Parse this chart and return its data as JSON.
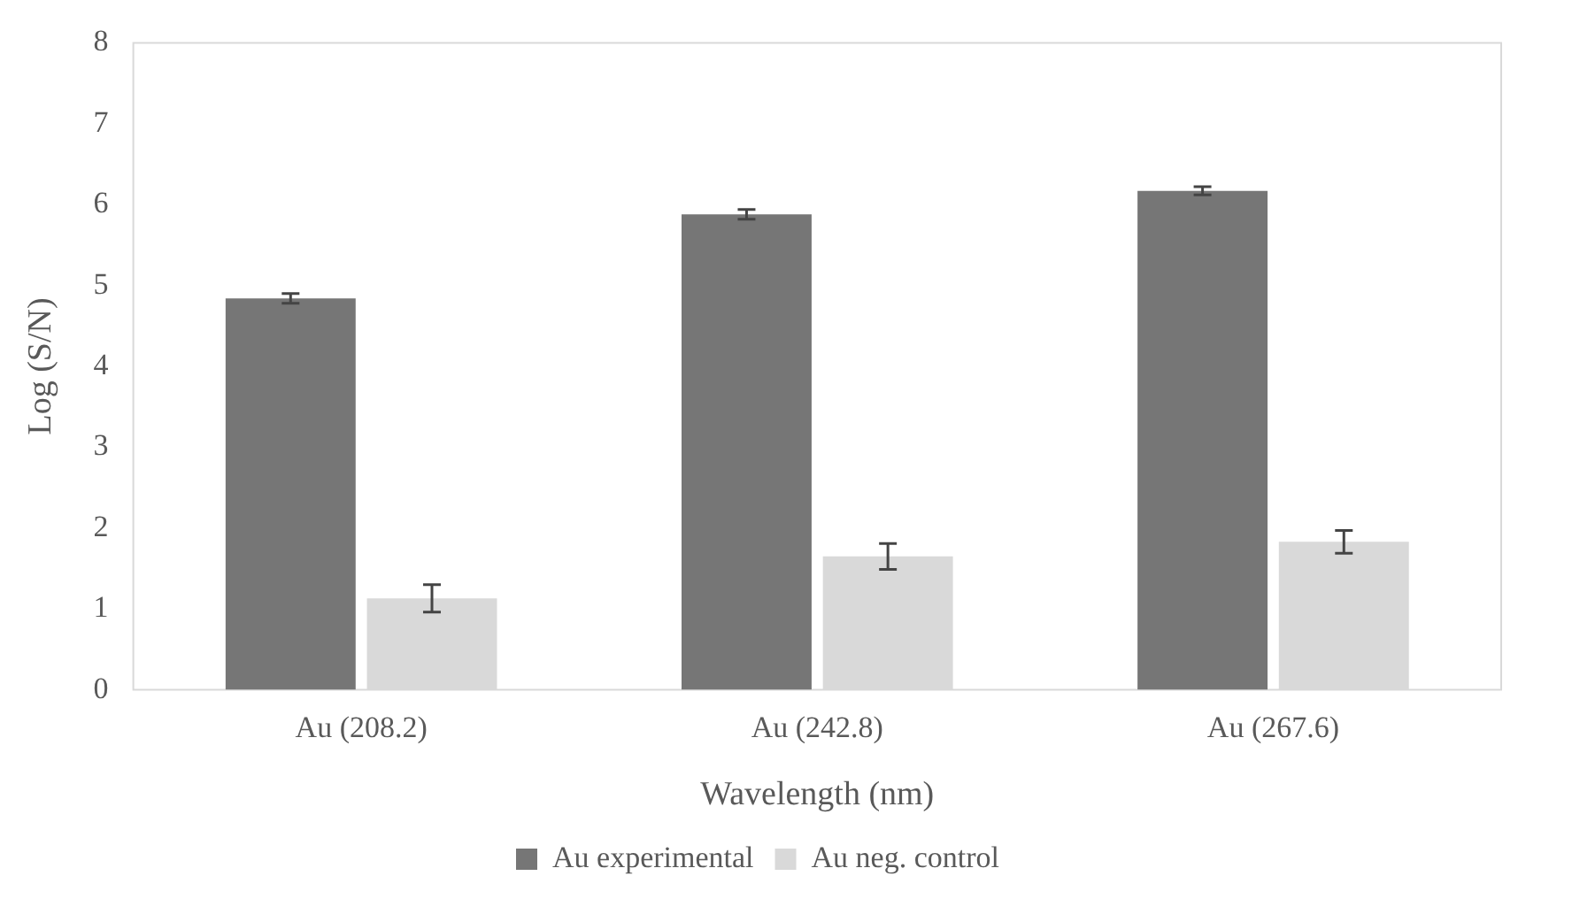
{
  "chart_data": {
    "type": "bar",
    "xlabel": "Wavelength (nm)",
    "ylabel": "Log (S/N)",
    "categories": [
      "Au (208.2)",
      "Au (242.8)",
      "Au (267.6)"
    ],
    "series": [
      {
        "name": "Au experimental",
        "color": "#767676",
        "values": [
          4.84,
          5.88,
          6.17
        ],
        "errors": [
          0.06,
          0.06,
          0.05
        ]
      },
      {
        "name": "Au neg. control",
        "color": "#d9d9d9",
        "values": [
          1.13,
          1.65,
          1.83
        ],
        "errors": [
          0.17,
          0.16,
          0.14
        ]
      }
    ],
    "ylim": [
      0,
      8
    ],
    "yticks": [
      0,
      1,
      2,
      3,
      4,
      5,
      6,
      7,
      8
    ],
    "grid": false,
    "legend": "bottom"
  }
}
